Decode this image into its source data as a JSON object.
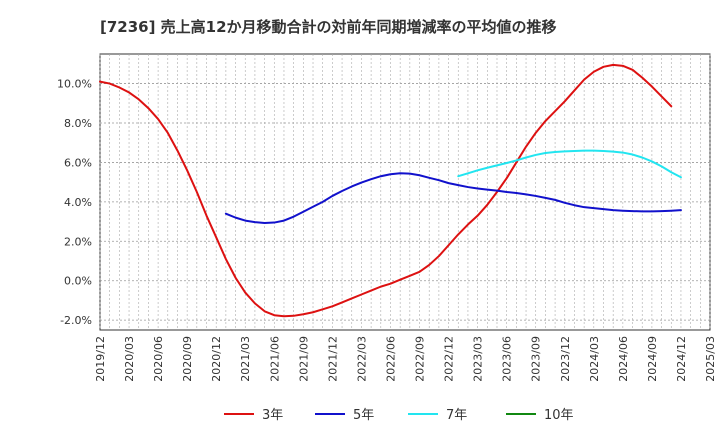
{
  "chart_data": {
    "type": "line",
    "title": "[7236]  売上高12か月移動合計の対前年同期増減率の平均値の推移",
    "xlabel": "",
    "ylabel": "",
    "ylim": [
      -2.5,
      11.5
    ],
    "y_ticks": [
      -2.0,
      0.0,
      2.0,
      4.0,
      6.0,
      8.0,
      10.0
    ],
    "y_tick_labels": [
      "-2.0%",
      "0.0%",
      "2.0%",
      "4.0%",
      "6.0%",
      "8.0%",
      "10.0%"
    ],
    "x_ticks": [
      "2019/12",
      "2020/03",
      "2020/06",
      "2020/09",
      "2020/12",
      "2021/03",
      "2021/06",
      "2021/09",
      "2021/12",
      "2022/03",
      "2022/06",
      "2022/09",
      "2022/12",
      "2023/03",
      "2023/06",
      "2023/09",
      "2023/12",
      "2024/03",
      "2024/06",
      "2024/09",
      "2024/12",
      "2025/03"
    ],
    "grid": true,
    "legend_position": "bottom",
    "series": [
      {
        "name": "3年",
        "color": "#dd1111",
        "points": [
          [
            "2019/12",
            10.1
          ],
          [
            "2020/01",
            10.0
          ],
          [
            "2020/02",
            9.8
          ],
          [
            "2020/03",
            9.55
          ],
          [
            "2020/04",
            9.2
          ],
          [
            "2020/05",
            8.75
          ],
          [
            "2020/06",
            8.2
          ],
          [
            "2020/07",
            7.5
          ],
          [
            "2020/08",
            6.6
          ],
          [
            "2020/09",
            5.6
          ],
          [
            "2020/10",
            4.5
          ],
          [
            "2020/11",
            3.3
          ],
          [
            "2020/12",
            2.2
          ],
          [
            "2021/01",
            1.1
          ],
          [
            "2021/02",
            0.15
          ],
          [
            "2021/03",
            -0.6
          ],
          [
            "2021/04",
            -1.15
          ],
          [
            "2021/05",
            -1.55
          ],
          [
            "2021/06",
            -1.75
          ],
          [
            "2021/07",
            -1.8
          ],
          [
            "2021/08",
            -1.78
          ],
          [
            "2021/09",
            -1.7
          ],
          [
            "2021/10",
            -1.6
          ],
          [
            "2021/11",
            -1.45
          ],
          [
            "2021/12",
            -1.3
          ],
          [
            "2022/01",
            -1.1
          ],
          [
            "2022/02",
            -0.9
          ],
          [
            "2022/03",
            -0.7
          ],
          [
            "2022/04",
            -0.5
          ],
          [
            "2022/05",
            -0.3
          ],
          [
            "2022/06",
            -0.15
          ],
          [
            "2022/07",
            0.05
          ],
          [
            "2022/08",
            0.25
          ],
          [
            "2022/09",
            0.45
          ],
          [
            "2022/10",
            0.8
          ],
          [
            "2022/11",
            1.25
          ],
          [
            "2022/12",
            1.8
          ],
          [
            "2023/01",
            2.35
          ],
          [
            "2023/02",
            2.85
          ],
          [
            "2023/03",
            3.3
          ],
          [
            "2023/04",
            3.85
          ],
          [
            "2023/05",
            4.5
          ],
          [
            "2023/06",
            5.2
          ],
          [
            "2023/07",
            6.0
          ],
          [
            "2023/08",
            6.8
          ],
          [
            "2023/09",
            7.5
          ],
          [
            "2023/10",
            8.1
          ],
          [
            "2023/11",
            8.6
          ],
          [
            "2023/12",
            9.1
          ],
          [
            "2024/01",
            9.65
          ],
          [
            "2024/02",
            10.2
          ],
          [
            "2024/03",
            10.6
          ],
          [
            "2024/04",
            10.85
          ],
          [
            "2024/05",
            10.95
          ],
          [
            "2024/06",
            10.9
          ],
          [
            "2024/07",
            10.7
          ],
          [
            "2024/08",
            10.3
          ],
          [
            "2024/09",
            9.85
          ],
          [
            "2024/10",
            9.35
          ],
          [
            "2024/11",
            8.85
          ]
        ]
      },
      {
        "name": "5年",
        "color": "#1111cc",
        "points": [
          [
            "2021/01",
            3.4
          ],
          [
            "2021/02",
            3.2
          ],
          [
            "2021/03",
            3.05
          ],
          [
            "2021/04",
            2.97
          ],
          [
            "2021/05",
            2.93
          ],
          [
            "2021/06",
            2.95
          ],
          [
            "2021/07",
            3.05
          ],
          [
            "2021/08",
            3.25
          ],
          [
            "2021/09",
            3.5
          ],
          [
            "2021/10",
            3.75
          ],
          [
            "2021/11",
            4.0
          ],
          [
            "2021/12",
            4.3
          ],
          [
            "2022/01",
            4.55
          ],
          [
            "2022/02",
            4.78
          ],
          [
            "2022/03",
            4.98
          ],
          [
            "2022/04",
            5.15
          ],
          [
            "2022/05",
            5.3
          ],
          [
            "2022/06",
            5.4
          ],
          [
            "2022/07",
            5.45
          ],
          [
            "2022/08",
            5.43
          ],
          [
            "2022/09",
            5.35
          ],
          [
            "2022/10",
            5.22
          ],
          [
            "2022/11",
            5.1
          ],
          [
            "2022/12",
            4.95
          ],
          [
            "2023/01",
            4.85
          ],
          [
            "2023/02",
            4.75
          ],
          [
            "2023/03",
            4.68
          ],
          [
            "2023/04",
            4.62
          ],
          [
            "2023/05",
            4.57
          ],
          [
            "2023/06",
            4.5
          ],
          [
            "2023/07",
            4.45
          ],
          [
            "2023/08",
            4.38
          ],
          [
            "2023/09",
            4.3
          ],
          [
            "2023/10",
            4.2
          ],
          [
            "2023/11",
            4.1
          ],
          [
            "2023/12",
            3.95
          ],
          [
            "2024/01",
            3.83
          ],
          [
            "2024/02",
            3.73
          ],
          [
            "2024/03",
            3.68
          ],
          [
            "2024/04",
            3.63
          ],
          [
            "2024/05",
            3.58
          ],
          [
            "2024/06",
            3.55
          ],
          [
            "2024/07",
            3.53
          ],
          [
            "2024/08",
            3.52
          ],
          [
            "2024/09",
            3.52
          ],
          [
            "2024/10",
            3.53
          ],
          [
            "2024/11",
            3.55
          ],
          [
            "2024/12",
            3.58
          ]
        ]
      },
      {
        "name": "7年",
        "color": "#22e5f0",
        "points": [
          [
            "2023/01",
            5.3
          ],
          [
            "2023/02",
            5.45
          ],
          [
            "2023/03",
            5.6
          ],
          [
            "2023/04",
            5.73
          ],
          [
            "2023/05",
            5.85
          ],
          [
            "2023/06",
            5.97
          ],
          [
            "2023/07",
            6.1
          ],
          [
            "2023/08",
            6.25
          ],
          [
            "2023/09",
            6.38
          ],
          [
            "2023/10",
            6.48
          ],
          [
            "2023/11",
            6.53
          ],
          [
            "2023/12",
            6.56
          ],
          [
            "2024/01",
            6.58
          ],
          [
            "2024/02",
            6.6
          ],
          [
            "2024/03",
            6.6
          ],
          [
            "2024/04",
            6.58
          ],
          [
            "2024/05",
            6.55
          ],
          [
            "2024/06",
            6.5
          ],
          [
            "2024/07",
            6.4
          ],
          [
            "2024/08",
            6.25
          ],
          [
            "2024/09",
            6.05
          ],
          [
            "2024/10",
            5.8
          ],
          [
            "2024/11",
            5.5
          ],
          [
            "2024/12",
            5.25
          ]
        ]
      },
      {
        "name": "10年",
        "color": "#118811",
        "points": []
      }
    ]
  }
}
